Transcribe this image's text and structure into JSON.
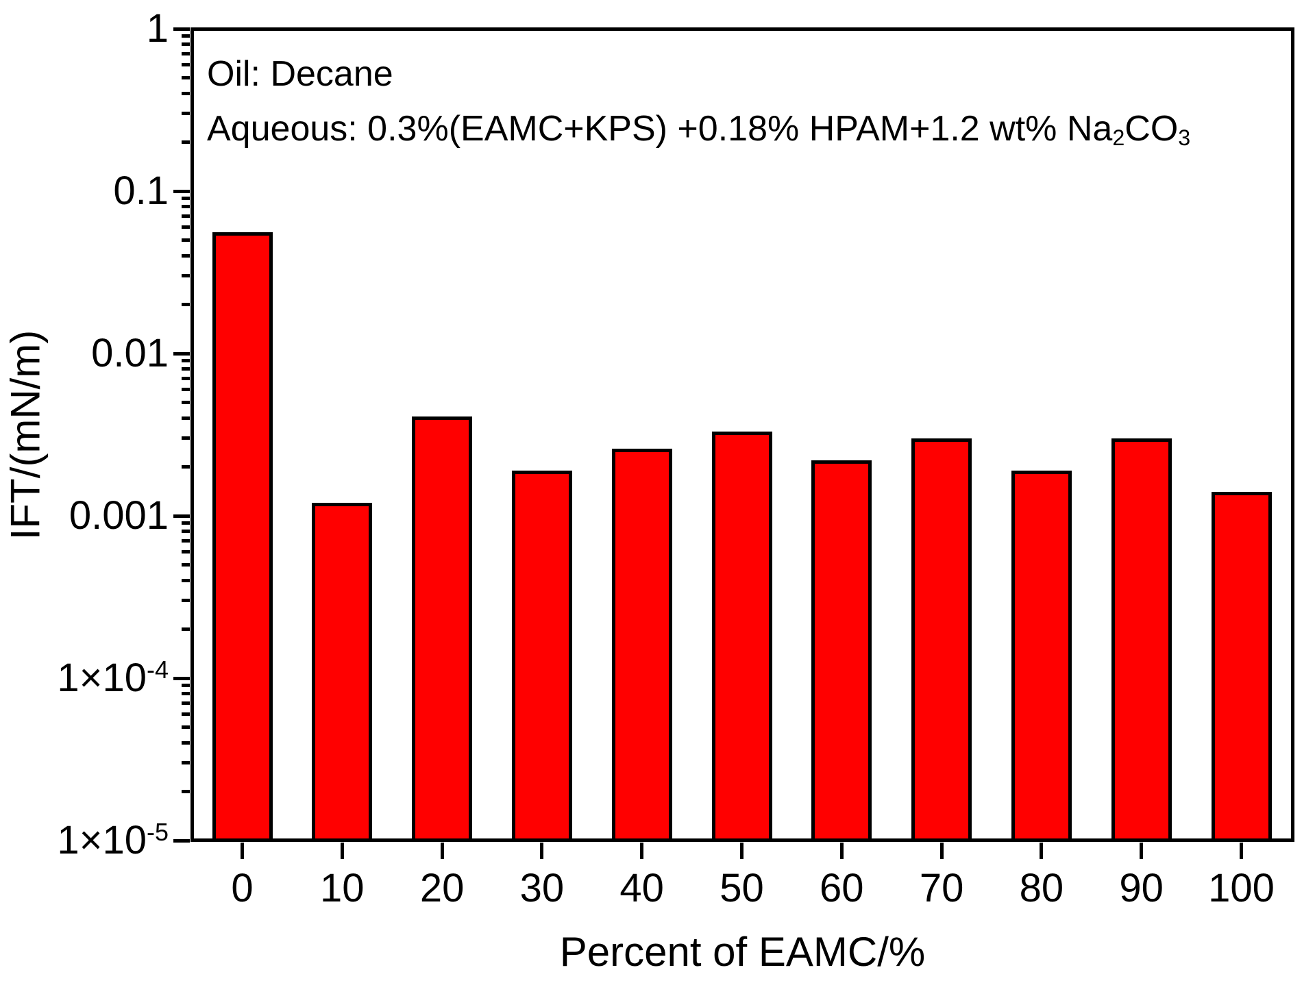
{
  "figure": {
    "background": "#FFFFFF",
    "frame_color": "#000000"
  },
  "annotation": {
    "line1": "Oil: Decane",
    "line2_parts": [
      {
        "text": "Aqueous: 0.3%(EAMC+KPS) +0.18% HPAM+1.2 wt% Na"
      },
      {
        "text": "2",
        "sub": true
      },
      {
        "text": "CO"
      },
      {
        "text": "3",
        "sub": true
      }
    ]
  },
  "chart_data": {
    "type": "bar",
    "title": "",
    "xlabel": "Percent of EAMC/%",
    "ylabel": "IFT/(mN/m)",
    "categories": [
      "0",
      "10",
      "20",
      "30",
      "40",
      "50",
      "60",
      "70",
      "80",
      "90",
      "100"
    ],
    "values": [
      0.056,
      0.0012,
      0.0041,
      0.0019,
      0.0026,
      0.0033,
      0.0022,
      0.003,
      0.0019,
      0.003,
      0.0014
    ],
    "yscale": "log",
    "ylim": [
      1e-05,
      1
    ],
    "grid": false,
    "legend_position": "none",
    "bar_color": "#FF0000",
    "bar_border_color": "#000000",
    "y_ticks": [
      {
        "label": "1",
        "sup": "",
        "value": 1
      },
      {
        "label": "0.1",
        "sup": "",
        "value": 0.1
      },
      {
        "label": "0.01",
        "sup": "",
        "value": 0.01
      },
      {
        "label": "0.001",
        "sup": "",
        "value": 0.001
      },
      {
        "label": "1×10",
        "sup": "-4",
        "value": 0.0001
      },
      {
        "label": "1×10",
        "sup": "-5",
        "value": 1e-05
      }
    ]
  }
}
